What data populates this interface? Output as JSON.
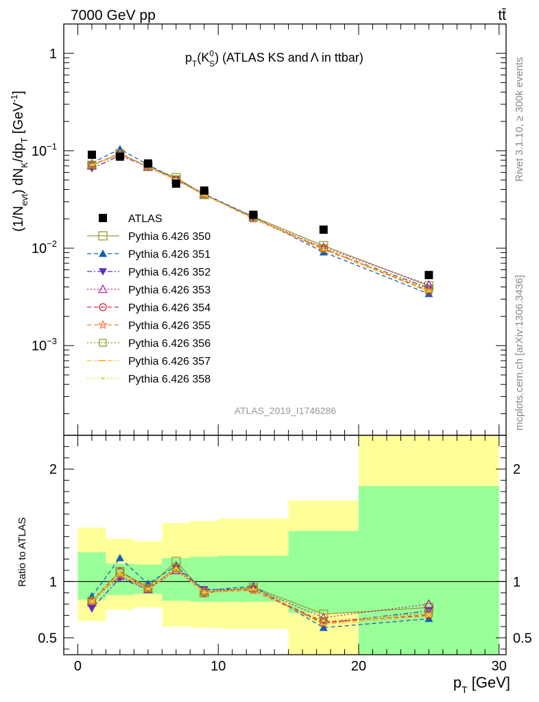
{
  "header": {
    "energy_label": "7000 GeV pp",
    "process_label": "tt̄",
    "analysis_id": "ATLAS_2019_I1746286",
    "rivet_label": "Rivet 3.1.10, ≥ 300k events",
    "source_label": "mcplots.cern.ch [arXiv:1306.3436]"
  },
  "colors": {
    "data": "#000000",
    "band_inner": "#99ff99",
    "band_outer": "#ffff99",
    "unity_line": "#000000"
  },
  "chart_data": [
    {
      "type": "line",
      "panel": "main",
      "title_parts": {
        "main": "p",
        "sub": "T",
        "open": "(K",
        "sup": "0",
        "sub2": "S",
        "close": ")",
        "rest": " (ATLAS KS and",
        "lambda": "Λ",
        "tail": " in ttbar)"
      },
      "title": "pT(K0S) (ATLAS KS and Λ in ttbar)",
      "ylabel": "(1/Nevt) dNK/dpT [GeV-1]",
      "ylabel_parts": {
        "a": "(1/N",
        "b": "evt",
        "c": ") dN",
        "d": "K",
        "e": "/dp",
        "f": "T",
        "g": " [GeV",
        "h": "-1",
        "i": "]"
      },
      "yscale": "log",
      "ylim": [
        0.00012,
        2.0
      ],
      "xlim": [
        -1,
        30.5
      ],
      "y_ticks": [
        {
          "value": 1,
          "base": "1",
          "exp": ""
        },
        {
          "value": 0.1,
          "base": "10",
          "exp": "−1"
        },
        {
          "value": 0.01,
          "base": "10",
          "exp": "−2"
        },
        {
          "value": 0.001,
          "base": "10",
          "exp": "−3"
        }
      ],
      "x": [
        1,
        3,
        5,
        7,
        9,
        12.5,
        17.5,
        25
      ],
      "x_err": [
        1,
        1,
        1,
        1,
        1,
        2.5,
        2.5,
        5
      ],
      "legend_position": "left-center",
      "series": [
        {
          "name": "ATLAS",
          "color": "#000000",
          "marker": "square-filled",
          "dash": "none",
          "values": [
            0.091,
            0.087,
            0.074,
            0.046,
            0.039,
            0.022,
            0.0155,
            0.0053
          ]
        },
        {
          "name": "Pythia 6.426 350",
          "color": "#999933",
          "marker": "square-open",
          "dash": "solid",
          "values": [
            0.071,
            0.093,
            0.069,
            0.053,
            0.0355,
            0.021,
            0.0106,
            0.0041
          ]
        },
        {
          "name": "Pythia 6.426 351",
          "color": "#0f5fb7",
          "marker": "triangle-up-filled",
          "dash": "dash",
          "values": [
            0.075,
            0.104,
            0.072,
            0.051,
            0.036,
            0.021,
            0.0091,
            0.0034
          ]
        },
        {
          "name": "Pythia 6.426 352",
          "color": "#5c2fbf",
          "marker": "triangle-down-filled",
          "dash": "dashdot",
          "values": [
            0.066,
            0.089,
            0.069,
            0.051,
            0.036,
            0.0205,
            0.0098,
            0.0039
          ]
        },
        {
          "name": "Pythia 6.426 353",
          "color": "#b0118e",
          "marker": "triangle-up-open",
          "dash": "dot",
          "values": [
            0.071,
            0.091,
            0.068,
            0.05,
            0.0355,
            0.0205,
            0.0102,
            0.0042
          ]
        },
        {
          "name": "Pythia 6.426 354",
          "color": "#e0213f",
          "marker": "circle-open",
          "dash": "dash",
          "values": [
            0.072,
            0.094,
            0.069,
            0.051,
            0.0355,
            0.0203,
            0.0099,
            0.0036
          ]
        },
        {
          "name": "Pythia 6.426 355",
          "color": "#f07a3a",
          "marker": "star-open",
          "dash": "dash",
          "values": [
            0.072,
            0.092,
            0.069,
            0.05,
            0.0355,
            0.02,
            0.0098,
            0.0037
          ]
        },
        {
          "name": "Pythia 6.426 356",
          "color": "#8b9b1e",
          "marker": "square-open-small",
          "dash": "dot",
          "values": [
            0.072,
            0.093,
            0.069,
            0.051,
            0.0355,
            0.0205,
            0.01,
            0.0038
          ]
        },
        {
          "name": "Pythia 6.426 357",
          "color": "#ffbb22",
          "marker": "dash-dot-marker",
          "dash": "dashdot",
          "values": [
            0.071,
            0.092,
            0.069,
            0.05,
            0.035,
            0.0203,
            0.0096,
            0.0036
          ]
        },
        {
          "name": "Pythia 6.426 358",
          "color": "#d8e020",
          "marker": "dot",
          "dash": "dot",
          "values": [
            0.072,
            0.093,
            0.069,
            0.051,
            0.0355,
            0.0205,
            0.01,
            0.0037
          ]
        }
      ]
    },
    {
      "type": "line",
      "panel": "ratio",
      "ylabel": "Ratio to ATLAS",
      "xlabel": "pT [GeV]",
      "xlabel_parts": {
        "a": "p",
        "b": "T",
        "c": " [GeV]"
      },
      "ylim": [
        0.35,
        2.3
      ],
      "xlim": [
        -1,
        30.5
      ],
      "y_ticks": [
        0.5,
        1,
        2
      ],
      "y_tick_labels": [
        "0.5",
        "1",
        "2"
      ],
      "x_ticks": [
        0,
        10,
        20,
        30
      ],
      "x_tick_labels": [
        "0",
        "10",
        "20",
        "30"
      ],
      "bands": [
        {
          "xlo": 0,
          "xhi": 2,
          "inner": [
            0.84,
            1.26
          ],
          "outer": [
            0.65,
            1.48
          ]
        },
        {
          "xlo": 2,
          "xhi": 4,
          "inner": [
            0.88,
            1.16
          ],
          "outer": [
            0.75,
            1.38
          ]
        },
        {
          "xlo": 4,
          "xhi": 6,
          "inner": [
            0.89,
            1.15
          ],
          "outer": [
            0.77,
            1.36
          ]
        },
        {
          "xlo": 6,
          "xhi": 8,
          "inner": [
            0.83,
            1.21
          ],
          "outer": [
            0.6,
            1.52
          ]
        },
        {
          "xlo": 8,
          "xhi": 10,
          "inner": [
            0.82,
            1.22
          ],
          "outer": [
            0.59,
            1.54
          ]
        },
        {
          "xlo": 10,
          "xhi": 15,
          "inner": [
            0.82,
            1.23
          ],
          "outer": [
            0.58,
            1.56
          ]
        },
        {
          "xlo": 15,
          "xhi": 20,
          "inner": [
            0.72,
            1.45
          ],
          "outer": [
            0.35,
            1.72
          ]
        },
        {
          "xlo": 20,
          "xhi": 30,
          "inner": [
            0.35,
            1.85
          ],
          "outer": [
            0.35,
            2.3
          ]
        }
      ],
      "series": [
        {
          "name": "Pythia 6.426 350",
          "values": [
            0.82,
            1.09,
            0.95,
            1.18,
            0.9,
            0.95,
            0.71,
            0.77
          ]
        },
        {
          "name": "Pythia 6.426 351",
          "values": [
            0.87,
            1.21,
            0.98,
            1.14,
            0.92,
            0.96,
            0.59,
            0.67
          ]
        },
        {
          "name": "Pythia 6.426 352",
          "values": [
            0.76,
            1.03,
            0.93,
            1.12,
            0.93,
            0.93,
            0.63,
            0.74
          ]
        },
        {
          "name": "Pythia 6.426 353",
          "values": [
            0.82,
            1.05,
            0.93,
            1.1,
            0.91,
            0.94,
            0.68,
            0.8
          ]
        },
        {
          "name": "Pythia 6.426 354",
          "values": [
            0.83,
            1.09,
            0.94,
            1.12,
            0.9,
            0.93,
            0.64,
            0.7
          ]
        },
        {
          "name": "Pythia 6.426 355",
          "values": [
            0.83,
            1.06,
            0.94,
            1.11,
            0.91,
            0.92,
            0.63,
            0.71
          ]
        },
        {
          "name": "Pythia 6.426 356",
          "values": [
            0.83,
            1.08,
            0.94,
            1.12,
            0.91,
            0.94,
            0.65,
            0.72
          ]
        },
        {
          "name": "Pythia 6.426 357",
          "values": [
            0.82,
            1.06,
            0.93,
            1.11,
            0.9,
            0.93,
            0.62,
            0.69
          ]
        },
        {
          "name": "Pythia 6.426 358",
          "values": [
            0.83,
            1.08,
            0.94,
            1.12,
            0.91,
            0.94,
            0.65,
            0.71
          ]
        }
      ]
    }
  ]
}
